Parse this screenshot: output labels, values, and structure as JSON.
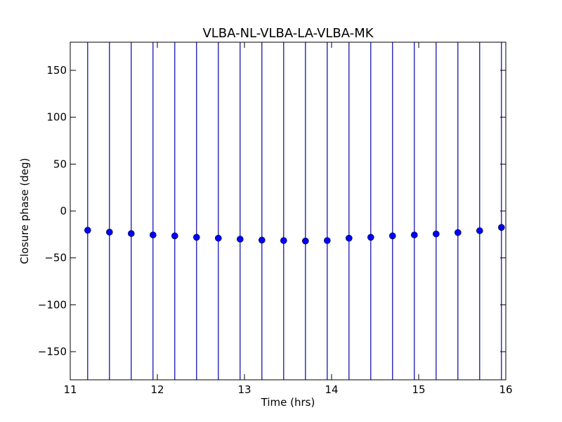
{
  "chart_data": {
    "type": "scatter",
    "title": "VLBA-NL-VLBA-LA-VLBA-MK",
    "xlabel": "Time (hrs)",
    "ylabel": "Closure phase (deg)",
    "xlim": [
      11,
      16
    ],
    "ylim": [
      -180,
      180
    ],
    "xticks": [
      11,
      12,
      13,
      14,
      15,
      16
    ],
    "yticks": [
      150,
      100,
      50,
      0,
      -50,
      -100,
      -150
    ],
    "xtick_labels": [
      "11",
      "12",
      "13",
      "14",
      "15",
      "16"
    ],
    "ytick_labels": [
      "150",
      "100",
      "50",
      "0",
      "−50",
      "−100",
      "−150"
    ],
    "marker_color": "#0000ff",
    "errorbar_color": "#0000aa",
    "grid": false,
    "legend": "none",
    "series": [
      {
        "x": [
          11.2,
          11.45,
          11.7,
          11.95,
          12.2,
          12.45,
          12.7,
          12.95,
          13.2,
          13.45,
          13.7,
          13.95,
          14.2,
          14.45,
          14.7,
          14.95,
          15.2,
          15.45,
          15.7,
          15.95
        ],
        "y": [
          -20.5,
          -22.5,
          -24,
          -25.5,
          -26.5,
          -28,
          -29,
          -30,
          -31,
          -31.5,
          -32,
          -31.5,
          -29,
          -28,
          -26.5,
          -25.5,
          -24.5,
          -23,
          -21,
          -17.5
        ],
        "yerr_lower": [
          -180,
          -180,
          -180,
          -180,
          -180,
          -180,
          -180,
          -180,
          -180,
          -180,
          -180,
          -180,
          -180,
          -180,
          -180,
          -180,
          -180,
          -180,
          -180,
          -180
        ],
        "yerr_upper": [
          180,
          180,
          180,
          180,
          180,
          180,
          180,
          180,
          180,
          180,
          180,
          180,
          180,
          180,
          180,
          180,
          180,
          180,
          180,
          180
        ]
      }
    ]
  }
}
